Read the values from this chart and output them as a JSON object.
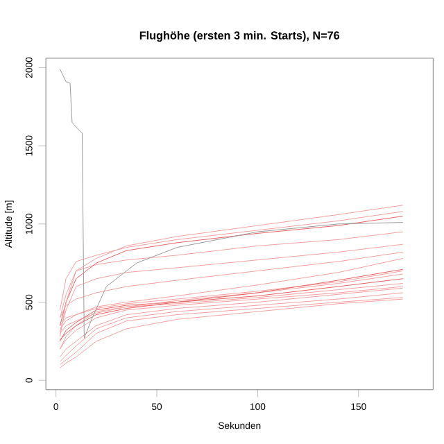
{
  "chart_data": {
    "type": "line",
    "title": "Flughöhe (ersten 3 min. Starts), N=76",
    "xlabel": "Sekunden",
    "ylabel": "Altitude [m]",
    "x": [
      2,
      5,
      10,
      20,
      35,
      60,
      100,
      140,
      172
    ],
    "xlim": [
      -5,
      187
    ],
    "xticks": [
      0,
      50,
      100,
      150
    ],
    "ylim": [
      -60,
      2060
    ],
    "yticks": [
      0,
      500,
      1000,
      1500,
      2000
    ],
    "grid": false,
    "marker": "none",
    "line_style": "solid",
    "series": [
      {
        "color": "#f4a0a0",
        "values": [
          300,
          350,
          380,
          430,
          470,
          490,
          530,
          580,
          620
        ]
      },
      {
        "color": "#e86060",
        "values": [
          250,
          320,
          370,
          450,
          480,
          500,
          540,
          600,
          650
        ]
      },
      {
        "color": "#f4a0a0",
        "values": [
          200,
          280,
          350,
          440,
          470,
          510,
          560,
          620,
          680
        ]
      },
      {
        "color": "#f4a0a0",
        "values": [
          350,
          400,
          420,
          460,
          490,
          520,
          570,
          630,
          700
        ]
      },
      {
        "color": "#f4a0a0",
        "values": [
          150,
          200,
          250,
          350,
          420,
          460,
          500,
          550,
          590
        ]
      },
      {
        "color": "#f4a0a0",
        "values": [
          100,
          130,
          180,
          300,
          380,
          420,
          460,
          500,
          530
        ]
      },
      {
        "color": "#f4a0a0",
        "values": [
          80,
          110,
          150,
          250,
          330,
          390,
          440,
          490,
          520
        ]
      },
      {
        "color": "#f4a0a0",
        "values": [
          310,
          450,
          600,
          650,
          690,
          720,
          770,
          820,
          870
        ]
      },
      {
        "color": "#f4a0a0",
        "values": [
          400,
          550,
          700,
          740,
          770,
          800,
          860,
          900,
          950
        ]
      },
      {
        "color": "#e86060",
        "values": [
          350,
          500,
          650,
          750,
          830,
          880,
          940,
          990,
          1050
        ]
      },
      {
        "color": "#f4a0a0",
        "values": [
          280,
          500,
          700,
          780,
          860,
          920,
          990,
          1060,
          1120
        ]
      },
      {
        "color": "#f4a0a0",
        "values": [
          450,
          650,
          760,
          800,
          850,
          900,
          960,
          1020,
          1080
        ]
      },
      {
        "color": "#e86060",
        "values": [
          260,
          300,
          350,
          420,
          460,
          500,
          560,
          640,
          710
        ]
      },
      {
        "color": "#f4a0a0",
        "values": [
          330,
          380,
          420,
          470,
          500,
          540,
          610,
          690,
          780
        ]
      },
      {
        "color": "#f4a0a0",
        "values": [
          200,
          260,
          320,
          400,
          450,
          480,
          520,
          560,
          600
        ]
      },
      {
        "color": "#f4a0a0",
        "values": [
          120,
          160,
          220,
          330,
          400,
          440,
          480,
          520,
          560
        ]
      },
      {
        "color": "#f4a0a0",
        "values": [
          400,
          480,
          520,
          560,
          600,
          640,
          700,
          760,
          820
        ]
      },
      {
        "color": "#999999",
        "x": [
          2,
          5,
          7,
          8,
          10,
          13,
          14,
          18,
          25,
          40,
          60,
          100,
          140,
          172
        ],
        "values": [
          1990,
          1910,
          1900,
          1650,
          1620,
          1580,
          270,
          400,
          600,
          750,
          850,
          950,
          1000,
          1010
        ]
      }
    ]
  }
}
